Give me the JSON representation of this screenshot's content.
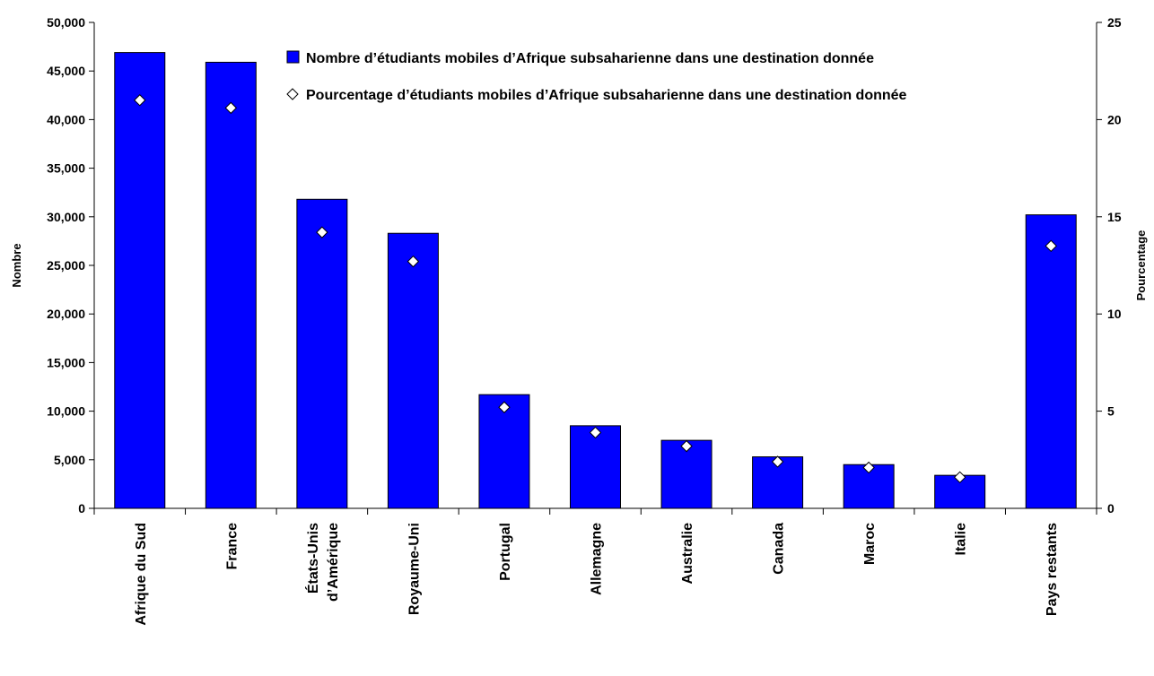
{
  "chart_data": {
    "type": "bar",
    "categories": [
      "Afrique du Sud",
      "France",
      "États-Unis d’Amérique",
      "Royaume-Uni",
      "Portugal",
      "Allemagne",
      "Australie",
      "Canada",
      "Maroc",
      "Italie",
      "Pays restants"
    ],
    "category_label_lines": [
      [
        "Afrique du Sud"
      ],
      [
        "France"
      ],
      [
        "États-Unis",
        "d’Amérique"
      ],
      [
        "Royaume-Uni"
      ],
      [
        "Portugal"
      ],
      [
        "Allemagne"
      ],
      [
        "Australie"
      ],
      [
        "Canada"
      ],
      [
        "Maroc"
      ],
      [
        "Italie"
      ],
      [
        "Pays restants"
      ]
    ],
    "series": [
      {
        "name": "Nombre d’étudiants mobiles d’Afrique subsaharienne dans une destination donnée",
        "type": "bar",
        "axis": "left",
        "color": "#0000ff",
        "values": [
          46900,
          45900,
          31800,
          28300,
          11700,
          8500,
          7000,
          5300,
          4500,
          3400,
          30200
        ]
      },
      {
        "name": "Pourcentage d’étudiants mobiles d’Afrique subsaharienne dans une destination donnée",
        "type": "scatter",
        "axis": "right",
        "marker": "diamond",
        "values": [
          21.0,
          20.6,
          14.2,
          12.7,
          5.2,
          3.9,
          3.2,
          2.4,
          2.1,
          1.6,
          13.5
        ]
      }
    ],
    "ylabel": "Nombre",
    "ylabel_right": "Pourcentage",
    "ylim": [
      0,
      50000
    ],
    "ylim_right": [
      0,
      25
    ],
    "yticks": [
      "0",
      "5,000",
      "10,000",
      "15,000",
      "20,000",
      "25,000",
      "30,000",
      "35,000",
      "40,000",
      "45,000",
      "50,000"
    ],
    "yticks_right": [
      "0",
      "5",
      "10",
      "15",
      "20",
      "25"
    ],
    "legend_position": "top",
    "grid": false
  }
}
